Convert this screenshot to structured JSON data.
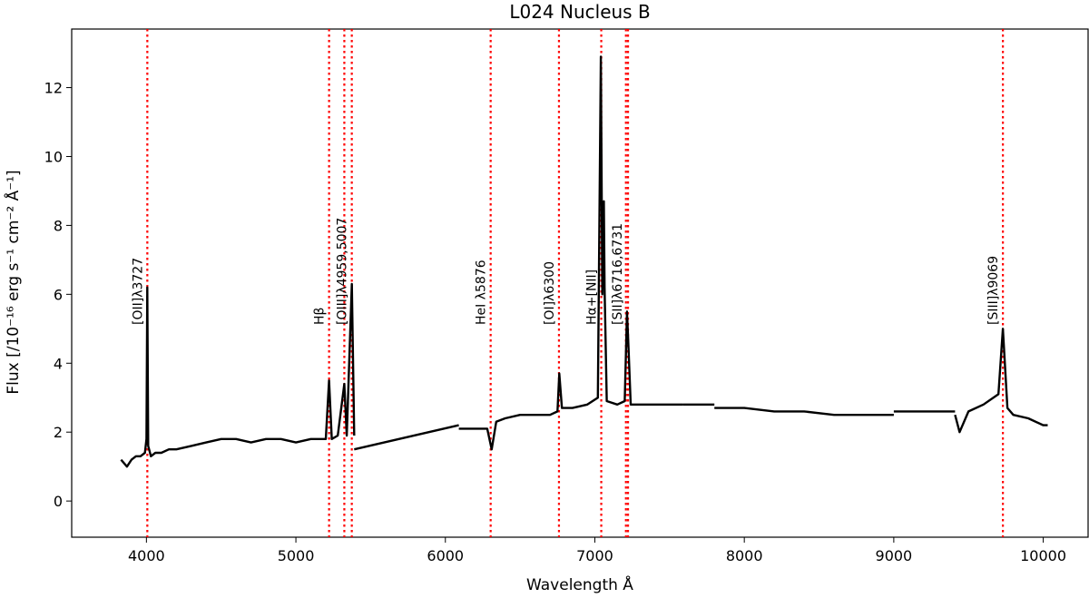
{
  "chart_data": {
    "type": "line",
    "title": "L024 Nucleus B",
    "xlabel": "Wavelength Å",
    "ylabel": "Flux  [/10⁻¹⁶ erg s⁻¹ cm⁻² Å⁻¹]",
    "xlim": [
      3500,
      10300
    ],
    "ylim": [
      -1.05,
      13.7
    ],
    "x_ticks": [
      4000,
      5000,
      6000,
      7000,
      8000,
      9000,
      10000
    ],
    "y_ticks": [
      0,
      2,
      4,
      6,
      8,
      10,
      12
    ],
    "grid": false,
    "colors": {
      "spectrum": "#000000",
      "line_markers": "#ff0000"
    },
    "series": [
      {
        "segments": [
          {
            "x": [
              3830,
              3870,
              3900,
              3930,
              3960,
              3990,
              4000,
              4006,
              4012,
              4030,
              4060,
              4100,
              4150,
              4200,
              4300,
              4400,
              4500,
              4600,
              4700,
              4800,
              4900,
              5000,
              5100,
              5200,
              5222,
              5240,
              5280,
              5324,
              5340,
              5374,
              5390
            ],
            "y": [
              1.2,
              1.0,
              1.2,
              1.3,
              1.3,
              1.4,
              1.8,
              6.2,
              1.6,
              1.3,
              1.4,
              1.4,
              1.5,
              1.5,
              1.6,
              1.7,
              1.8,
              1.8,
              1.7,
              1.8,
              1.8,
              1.7,
              1.8,
              1.8,
              3.5,
              1.8,
              1.9,
              3.4,
              1.9,
              6.3,
              1.9
            ]
          },
          {
            "x": [
              5390,
              6090
            ],
            "y": [
              1.5,
              2.2
            ]
          },
          {
            "x": [
              6090,
              6200,
              6280,
              6310,
              6340,
              6400,
              6500,
              6600,
              6700,
              6750,
              6762,
              6780,
              6850,
              6950,
              7020,
              7040,
              7050,
              7060,
              7065,
              7080,
              7150,
              7200,
              7215,
              7225,
              7240,
              7300,
              7400,
              7500,
              7590
            ],
            "y": [
              2.1,
              2.1,
              2.1,
              1.5,
              2.3,
              2.4,
              2.5,
              2.5,
              2.5,
              2.6,
              3.7,
              2.7,
              2.7,
              2.8,
              3.0,
              12.9,
              6.0,
              8.7,
              6.2,
              2.9,
              2.8,
              2.9,
              5.5,
              4.5,
              2.8,
              2.8,
              2.8,
              2.8,
              2.8
            ]
          },
          {
            "x": [
              7590,
              7800
            ],
            "y": [
              2.8,
              2.8
            ]
          },
          {
            "x": [
              7800,
              8000,
              8200,
              8400,
              8600,
              8800,
              9000
            ],
            "y": [
              2.7,
              2.7,
              2.6,
              2.6,
              2.5,
              2.5,
              2.5
            ]
          },
          {
            "x": [
              9000,
              9410
            ],
            "y": [
              2.6,
              2.6
            ]
          },
          {
            "x": [
              9410,
              9440,
              9500,
              9600,
              9700,
              9730,
              9760,
              9800,
              9900,
              10000,
              10030
            ],
            "y": [
              2.5,
              2.0,
              2.6,
              2.8,
              3.1,
              5.0,
              2.7,
              2.5,
              2.4,
              2.2,
              2.2
            ]
          }
        ]
      }
    ],
    "emission_lines": [
      {
        "label": "[OII]λ3727",
        "x": [
          4006
        ]
      },
      {
        "label": "Hβ",
        "x": [
          5222
        ]
      },
      {
        "label": "",
        "x": [
          5324
        ]
      },
      {
        "label": "[OIII]λ4959,5007",
        "x": [
          5374
        ]
      },
      {
        "label": "HeI λ5876",
        "x": [
          6303
        ]
      },
      {
        "label": "[OI]λ6300",
        "x": [
          6760
        ]
      },
      {
        "label": "Hα+[NII]",
        "x": [
          7043
        ]
      },
      {
        "label": "[SII]λ6716,6731",
        "x": [
          7208,
          7222
        ]
      },
      {
        "label": "[SIII]λ9069",
        "x": [
          9730
        ]
      }
    ]
  }
}
